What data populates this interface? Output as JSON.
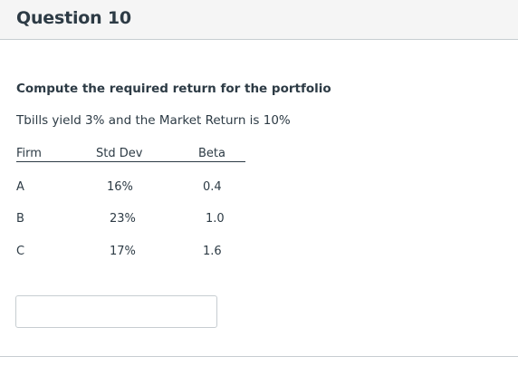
{
  "question": {
    "title": "Question 10",
    "prompt": "Compute the required return for the portfolio",
    "info": "Tbills yield 3% and the Market Return is 10%"
  },
  "table": {
    "headers": [
      "Firm",
      "Std Dev",
      "Beta"
    ],
    "rows": [
      [
        "A",
        "16%",
        "0.4"
      ],
      [
        "B",
        "23%",
        "1.0"
      ],
      [
        "C",
        "17%",
        "1.6"
      ]
    ]
  },
  "answer": {
    "value": "",
    "placeholder": ""
  }
}
